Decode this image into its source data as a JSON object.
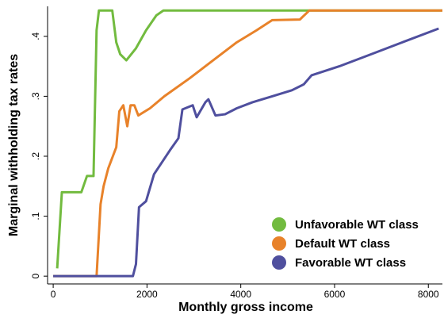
{
  "chart_data": {
    "type": "line",
    "xlabel": "Monthly gross income",
    "ylabel": "Marginal withholding tax rates",
    "xlim": [
      -120,
      8300
    ],
    "ylim": [
      -0.013,
      0.45
    ],
    "xticks": [
      0,
      2000,
      4000,
      6000,
      8000
    ],
    "yticks": [
      0,
      {
        "value": 0.1,
        "label": ".1"
      },
      {
        "value": 0.2,
        "label": ".2"
      },
      {
        "value": 0.3,
        "label": ".3"
      },
      {
        "value": 0.4,
        "label": ".4"
      }
    ],
    "grid": false,
    "legend": "lower right",
    "series": [
      {
        "name": "Unfavorable WT class",
        "color": "#72bb3f",
        "x": [
          85,
          185,
          600,
          720,
          860,
          925,
          975,
          1260,
          1345,
          1430,
          1560,
          1765,
          1980,
          2200,
          2350,
          8300
        ],
        "values": [
          0.013,
          0.14,
          0.14,
          0.167,
          0.167,
          0.41,
          0.443,
          0.443,
          0.39,
          0.37,
          0.36,
          0.38,
          0.41,
          0.435,
          0.443,
          0.443
        ]
      },
      {
        "name": "Default WT class",
        "color": "#e8822a",
        "x": [
          0,
          925,
          1010,
          1075,
          1175,
          1345,
          1410,
          1495,
          1580,
          1650,
          1730,
          1815,
          2065,
          2370,
          2910,
          3410,
          3915,
          4335,
          4670,
          5260,
          5460,
          8300
        ],
        "values": [
          0,
          0,
          0.12,
          0.15,
          0.18,
          0.215,
          0.275,
          0.285,
          0.25,
          0.285,
          0.285,
          0.268,
          0.28,
          0.3,
          0.33,
          0.36,
          0.39,
          0.41,
          0.427,
          0.428,
          0.443,
          0.443
        ]
      },
      {
        "name": "Favorable WT class",
        "color": "#4f4f9e",
        "x": [
          0,
          1700,
          1765,
          1830,
          1980,
          2150,
          2320,
          2490,
          2670,
          2755,
          2975,
          3060,
          3245,
          3310,
          3460,
          3665,
          3915,
          4250,
          4670,
          5090,
          5345,
          5510,
          6100,
          6775,
          7445,
          8220
        ],
        "values": [
          0,
          0,
          0.02,
          0.115,
          0.125,
          0.17,
          0.19,
          0.21,
          0.23,
          0.278,
          0.285,
          0.265,
          0.29,
          0.295,
          0.268,
          0.27,
          0.28,
          0.29,
          0.3,
          0.31,
          0.32,
          0.335,
          0.35,
          0.37,
          0.39,
          0.413
        ]
      }
    ]
  }
}
